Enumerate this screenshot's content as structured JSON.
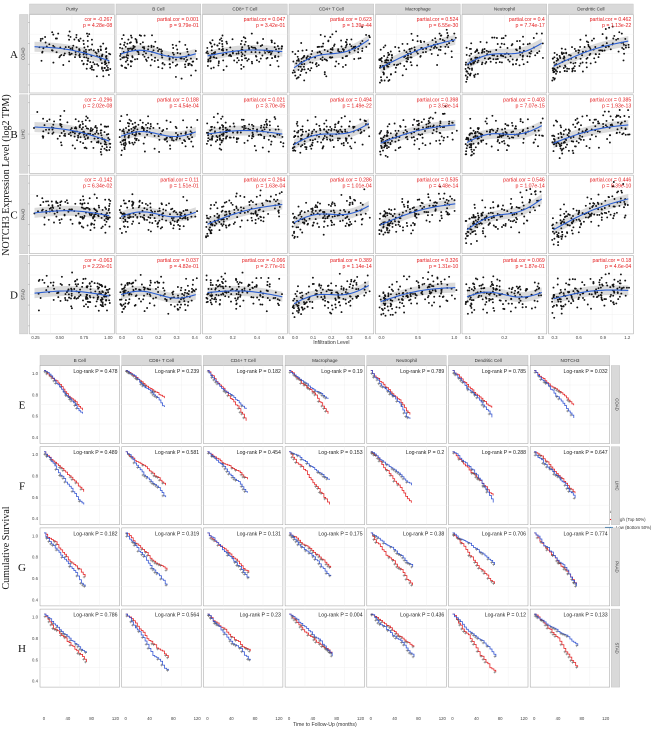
{
  "chart_data": [
    {
      "type": "scatter",
      "ylabel": "NOTCH3 Expression Level (log2 TPM)",
      "xlabel": "Infiltration Level",
      "row_letters": [
        "A",
        "B",
        "C",
        "D"
      ],
      "cancers": [
        "COAD",
        "LIHC",
        "PAAD",
        "STAD"
      ],
      "panels": [
        "Purity",
        "B Cell",
        "CD8+ T Cell",
        "CD4+ T Cell",
        "Macrophage",
        "Neutrophil",
        "Dendritic Cell"
      ],
      "y_ticks": [
        [
          "0",
          "2",
          "4",
          "6"
        ],
        [
          "2.5",
          "5.0",
          "7.5"
        ],
        [
          "2",
          "4",
          "6",
          "8"
        ],
        [
          "0",
          "2",
          "4",
          "6"
        ]
      ],
      "x_ticks": [
        [
          "0.25",
          "0.50",
          "0.75",
          "1.00"
        ],
        [
          "0.0",
          "0.1",
          "0.2",
          "0.3",
          "0.4"
        ],
        [
          "0.0",
          "0.2",
          "0.4",
          "0.6"
        ],
        [
          "0.0",
          "0.1",
          "0.2",
          "0.3",
          "0.4"
        ],
        [
          "0.0",
          "0.5",
          "1.0"
        ],
        [
          "0.1",
          "0.2",
          "0.3"
        ],
        [
          "0.3",
          "0.6",
          "0.9",
          "1.2"
        ]
      ],
      "stats": [
        [
          [
            "cor = -0.267",
            "p = 4.28e-08"
          ],
          [
            "partial.cor = 0.001",
            "p = 9.79e-01"
          ],
          [
            "partial.cor = 0.047",
            "p = 3.42e-01"
          ],
          [
            "partial.cor = 0.623",
            "p = 1.39e-44"
          ],
          [
            "partial.cor = 0.524",
            "p = 6.55e-30"
          ],
          [
            "partial.cor = 0.4",
            "p = 7.74e-17"
          ],
          [
            "partial.cor = 0.462",
            "p = 1.13e-22"
          ]
        ],
        [
          [
            "cor = -0.296",
            "p = 2.02e-08"
          ],
          [
            "partial.cor = 0.188",
            "p = 4.54e-04"
          ],
          [
            "partial.cor = 0.021",
            "p = 3.70e-05"
          ],
          [
            "partial.cor = 0.494",
            "p = 1.49e-22"
          ],
          [
            "partial.cor = 0.398",
            "p = 3.53e-14"
          ],
          [
            "partial.cor = 0.403",
            "p = 7.07e-15"
          ],
          [
            "partial.cor = 0.385",
            "p = 1.93e-13"
          ]
        ],
        [
          [
            "cor = -0.142",
            "p = 6.34e-02"
          ],
          [
            "partial.cor = 0.11",
            "p = 1.51e-01"
          ],
          [
            "partial.cor = 0.264",
            "p = 1.63e-04"
          ],
          [
            "partial.cor = 0.286",
            "p = 1.01e-04"
          ],
          [
            "partial.cor = 0.535",
            "p = 4.48e-14"
          ],
          [
            "partial.cor = 0.546",
            "p = 1.07e-14"
          ],
          [
            "partial.cor = 0.446",
            "p = 9.39e-10"
          ]
        ],
        [
          [
            "cor = -0.063",
            "p = 2.22e-01"
          ],
          [
            "partial.cor = 0.037",
            "p = 4.82e-01"
          ],
          [
            "partial.cor = -0.066",
            "p = 2.77e-01"
          ],
          [
            "partial.cor = 0.389",
            "p = 1.14e-14"
          ],
          [
            "partial.cor = 0.326",
            "p = 1.31e-10"
          ],
          [
            "partial.cor = 0.069",
            "p = 1.87e-01"
          ],
          [
            "partial.cor = 0.18",
            "p = 4.6e-04"
          ]
        ]
      ],
      "trend_shape": [
        [
          -1,
          0,
          0.3,
          2,
          2,
          1.5,
          1.8
        ],
        [
          -1,
          0.3,
          0,
          1.5,
          1.3,
          1.2,
          1.3
        ],
        [
          -0.2,
          0.3,
          1.4,
          1.2,
          1.5,
          2.2,
          2.2
        ],
        [
          -0.2,
          0,
          -0.3,
          1.3,
          1,
          0.3,
          0.6
        ]
      ]
    },
    {
      "type": "line",
      "ylabel": "Cumulative Survival",
      "xlabel": "Time to Follow-Up (months)",
      "row_letters": [
        "E",
        "F",
        "G",
        "H"
      ],
      "cancers": [
        "COAD",
        "LIHC",
        "PAAD",
        "STAD"
      ],
      "panels": [
        "B Cell",
        "CD8+ T Cell",
        "CD4+ T Cell",
        "Macrophage",
        "Neutrophil",
        "Dendritic Cell",
        "NOTCH3"
      ],
      "y_ticks": [
        "0.4",
        "0.6",
        "0.8",
        "1.0"
      ],
      "x_ticks": [
        "0",
        "40",
        "80",
        "120"
      ],
      "logrank": [
        [
          "Log-rank P = 0.478",
          "Log-rank P = 0.239",
          "Log-rank P = 0.182",
          "Log-rank P = 0.19",
          "Log-rank P = 0.789",
          "Log-rank P = 0.785",
          "Log-rank P = 0.032"
        ],
        [
          "Log-rank P = 0.489",
          "Log-rank P = 0.581",
          "Log-rank P = 0.454",
          "Log-rank P = 0.153",
          "Log-rank P = 0.2",
          "Log-rank P = 0.288",
          "Log-rank P = 0.647"
        ],
        [
          "Log-rank P = 0.182",
          "Log-rank P = 0.319",
          "Log-rank P = 0.131",
          "Log-rank P = 0.175",
          "Log-rank P = 0.38",
          "Log-rank P = 0.706",
          "Log-rank P = 0.774"
        ],
        [
          "Log-rank P = 0.786",
          "Log-rank P = 0.564",
          "Log-rank P = 0.23",
          "Log-rank P = 0.004",
          "Log-rank P = 0.436",
          "Log-rank P = 0.12",
          "Log-rank P = 0.133"
        ]
      ],
      "legend": {
        "title": "Level",
        "entries": [
          {
            "label": "High (Top 50%)",
            "color": "#e41a1c"
          },
          {
            "label": "Low (Bottom 50%)",
            "color": "#377eb8"
          }
        ]
      }
    }
  ]
}
